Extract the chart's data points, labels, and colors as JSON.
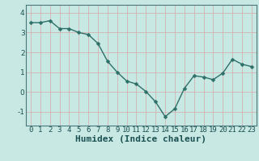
{
  "x": [
    0,
    1,
    2,
    3,
    4,
    5,
    6,
    7,
    8,
    9,
    10,
    11,
    12,
    13,
    14,
    15,
    16,
    17,
    18,
    19,
    20,
    21,
    22,
    23
  ],
  "y": [
    3.5,
    3.5,
    3.6,
    3.2,
    3.2,
    3.0,
    2.9,
    2.45,
    1.55,
    1.0,
    0.55,
    0.4,
    0.02,
    -0.5,
    -1.25,
    -0.85,
    0.18,
    0.82,
    0.75,
    0.62,
    0.95,
    1.65,
    1.4,
    1.28
  ],
  "line_color": "#2d7068",
  "marker": "D",
  "marker_size": 2.5,
  "bg_color": "#c8e8e4",
  "grid_color": "#d4a8a8",
  "xlabel": "Humidex (Indice chaleur)",
  "xlabel_fontsize": 8,
  "xlabel_color": "#1a5050",
  "ylabel_ticks": [
    -1,
    0,
    1,
    2,
    3,
    4
  ],
  "xlim": [
    -0.5,
    23.5
  ],
  "ylim": [
    -1.7,
    4.4
  ],
  "tick_fontsize": 6.5,
  "tick_color": "#1a5050",
  "spine_color": "#4a7878",
  "linewidth": 1.0
}
